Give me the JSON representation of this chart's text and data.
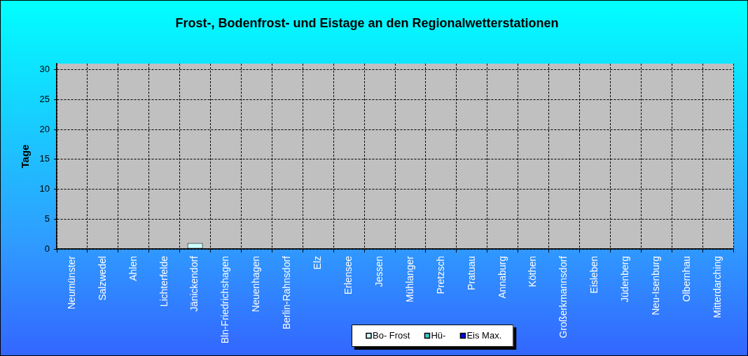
{
  "chart_data": {
    "type": "bar",
    "title": "Frost-, Bodenfrost- und Eistage an den Regionalwetterstationen",
    "ylabel": "Tage",
    "categories": [
      "Neumünster",
      "Salzwedel",
      "Ahlen",
      "Lichterfelde",
      "Jänickendorf",
      "Bln-Friedrichshagen",
      "Neuenhagen",
      "Berlin-Rahnsdorf",
      "Elz",
      "Erlensee",
      "Jessen",
      "Mühlanger",
      "Pretzsch",
      "Pratuau",
      "Annaburg",
      "Köthen",
      "Großerkmannsdorf",
      "Eisleben",
      "Jüdenberg",
      "Neu-Isenburg",
      "Olbernhau",
      "Mitterdarching"
    ],
    "series": [
      {
        "name": "Bo- Frost",
        "color": "#ccffff",
        "values": [
          0,
          0,
          0,
          0,
          1,
          0,
          0,
          0,
          0,
          0,
          0,
          0,
          0,
          0,
          0,
          0,
          0,
          0,
          0,
          0,
          0,
          0
        ]
      },
      {
        "name": "Hü-",
        "color": "#33cccc",
        "values": [
          0,
          0,
          0,
          0,
          0,
          0,
          0,
          0,
          0,
          0,
          0,
          0,
          0,
          0,
          0,
          0,
          0,
          0,
          0,
          0,
          0,
          0
        ]
      },
      {
        "name": "Eis Max.",
        "color": "#0000ff",
        "values": [
          0,
          0,
          0,
          0,
          0,
          0,
          0,
          0,
          0,
          0,
          0,
          0,
          0,
          0,
          0,
          0,
          0,
          0,
          0,
          0,
          0,
          0
        ]
      }
    ],
    "ylim": [
      0,
      31
    ],
    "yticks": [
      0,
      5,
      10,
      15,
      20,
      25,
      30
    ],
    "grid": true,
    "legend": "bottom"
  }
}
